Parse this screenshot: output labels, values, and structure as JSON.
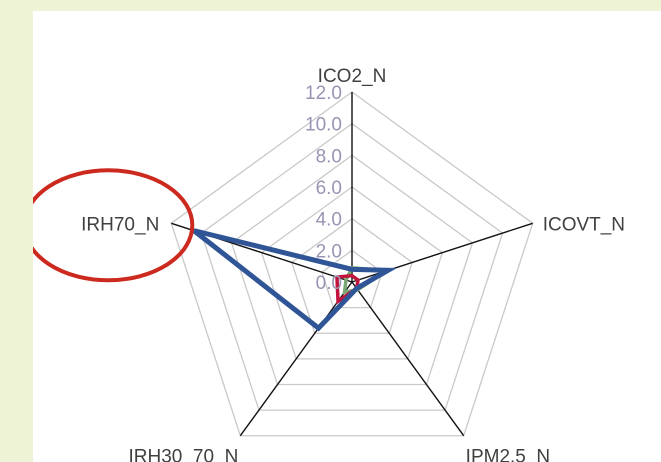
{
  "chart_data": {
    "type": "radar",
    "title": "",
    "categories": [
      "ICO2_N",
      "ICOVT_N",
      "IPM2.5_N",
      "IRH30_70_N",
      "IRH70_N"
    ],
    "rlim": [
      0,
      12
    ],
    "ticks": [
      "0.0",
      "2.0",
      "4.0",
      "6.0",
      "8.0",
      "10.0",
      "12.0"
    ],
    "tick_values": [
      0,
      2,
      4,
      6,
      8,
      10,
      12
    ],
    "grid": true,
    "series": [
      {
        "color": "#2f5597",
        "values": [
          0.8,
          2.4,
          0.5,
          3.6,
          10.5
        ]
      },
      {
        "color": "#c0143c",
        "values": [
          0.4,
          0.4,
          0.5,
          1.5,
          1.0
        ]
      },
      {
        "color": "#7aa874",
        "values": [
          0.9,
          2.3,
          0.6,
          0.8,
          0.4
        ]
      }
    ],
    "annotation": {
      "shape": "ellipse",
      "color": "#cc2a1e",
      "target": "IRH70_N"
    }
  }
}
